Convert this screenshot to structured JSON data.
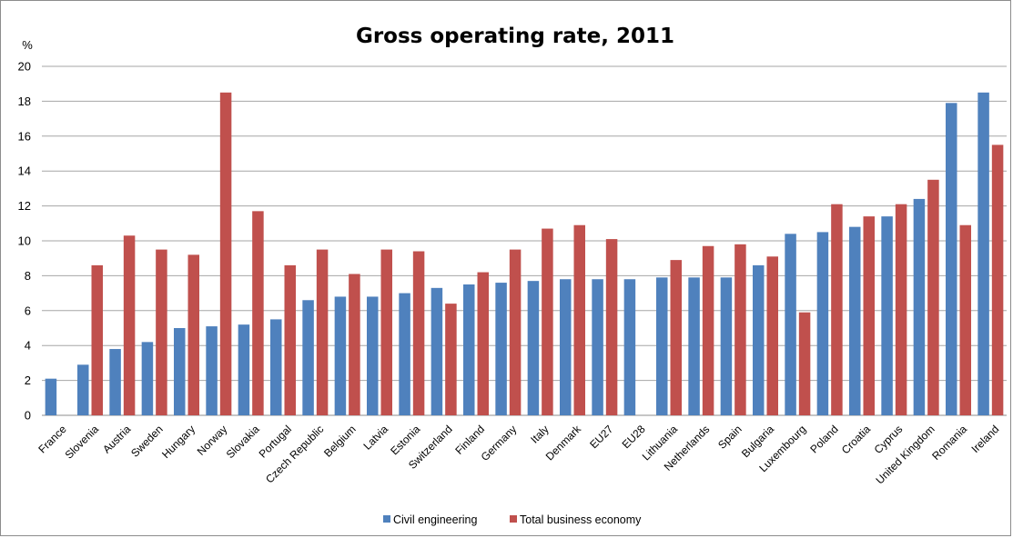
{
  "chart_data": {
    "type": "bar",
    "title": "Gross operating rate,  2011",
    "ylabel": "%",
    "xlabel": "",
    "ylim": [
      0,
      20
    ],
    "yticks": [
      0,
      2,
      4,
      6,
      8,
      10,
      12,
      14,
      16,
      18,
      20
    ],
    "grid": true,
    "legend_position": "bottom",
    "categories": [
      "France",
      "Slovenia",
      "Austria",
      "Sweden",
      "Hungary",
      "Norway",
      "Slovakia",
      "Portugal",
      "Czech Republic",
      "Belgium",
      "Latvia",
      "Estonia",
      "Switzerland",
      "Finland",
      "Germany",
      "Italy",
      "Denmark",
      "EU27",
      "EU28",
      "Lithuania",
      "Netherlands",
      "Spain",
      "Bulgaria",
      "Luxembourg",
      "Poland",
      "Croatia",
      "Cyprus",
      "United Kingdom",
      "Romania",
      "Ireland"
    ],
    "series": [
      {
        "name": "Civil engineering",
        "color": "#4f81bd",
        "values": [
          2.1,
          2.9,
          3.8,
          4.2,
          5.0,
          5.1,
          5.2,
          5.5,
          6.6,
          6.8,
          6.8,
          7.0,
          7.3,
          7.5,
          7.6,
          7.7,
          7.8,
          7.8,
          7.8,
          7.9,
          7.9,
          7.9,
          8.6,
          10.4,
          10.5,
          10.8,
          11.4,
          12.4,
          17.9,
          18.5
        ]
      },
      {
        "name": "Total business economy",
        "color": "#c0504d",
        "values": [
          null,
          8.6,
          10.3,
          9.5,
          9.2,
          18.5,
          11.7,
          8.6,
          9.5,
          8.1,
          9.5,
          9.4,
          6.4,
          8.2,
          9.5,
          10.7,
          10.9,
          10.1,
          null,
          8.9,
          9.7,
          9.8,
          9.1,
          5.9,
          12.1,
          11.4,
          12.1,
          13.5,
          10.9,
          15.5
        ]
      }
    ]
  }
}
